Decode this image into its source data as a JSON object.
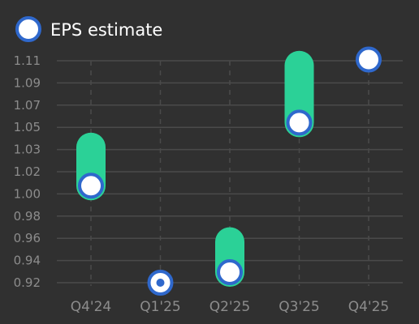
{
  "chart_data": {
    "type": "scatter",
    "legend": {
      "entries": [
        "EPS estimate"
      ],
      "placement": "top-left"
    },
    "categories": [
      "Q4'24",
      "Q1'25",
      "Q2'25",
      "Q3'25",
      "Q4'25"
    ],
    "y_ticks": [
      "0.92",
      "0.94",
      "0.96",
      "0.98",
      "1.00",
      "1.02",
      "1.03",
      "1.05",
      "1.07",
      "1.09",
      "1.11"
    ],
    "ylim": [
      0.92,
      1.11
    ],
    "grid": true,
    "series": [
      {
        "name": "EPS estimate",
        "values": [
          1.003,
          0.92,
          0.929,
          1.057,
          1.111
        ]
      }
    ],
    "range_bars": [
      {
        "category": "Q4'24",
        "low": 1.003,
        "high": 1.036
      },
      {
        "category": "Q2'25",
        "low": 0.929,
        "high": 0.955
      },
      {
        "category": "Q3'25",
        "low": 1.057,
        "high": 1.106
      }
    ],
    "colors": {
      "background": "#303030",
      "grid": "#4a4a4a",
      "range_bar": "#2bd197",
      "marker_fill": "#ffffff",
      "marker_stroke": "#2f68cc",
      "label": "#8c8c8c",
      "legend_text": "#ffffff"
    }
  }
}
